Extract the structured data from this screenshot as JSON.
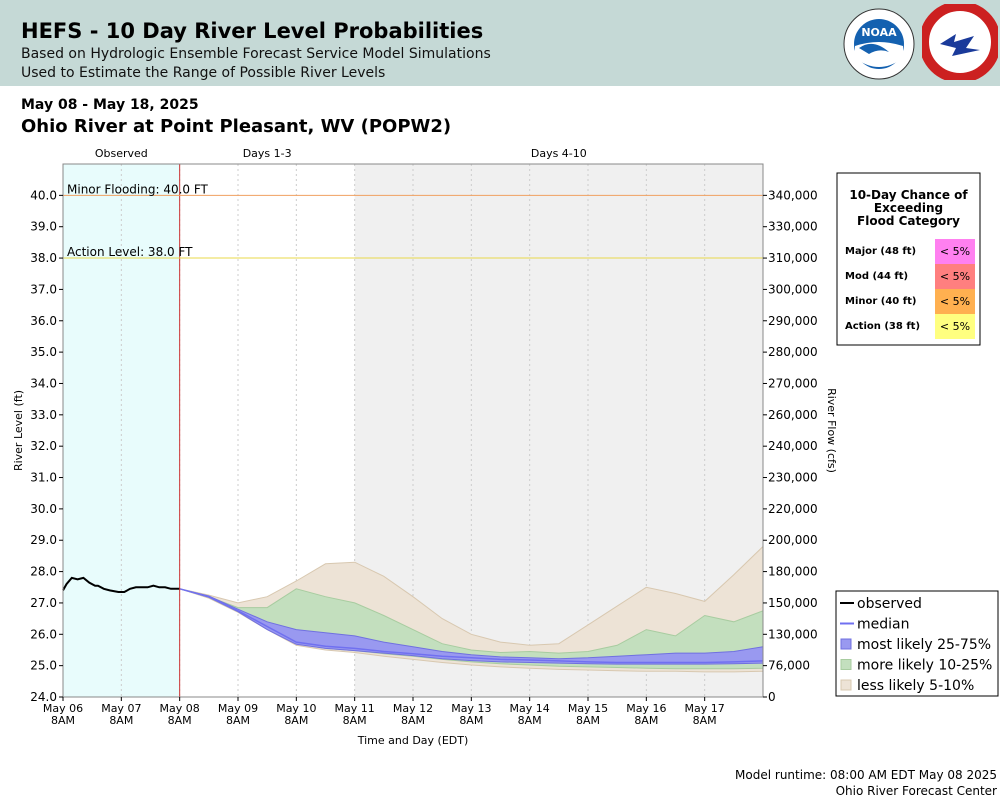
{
  "header": {
    "title": "HEFS - 10 Day River Level Probabilities",
    "subtitle1": "Based on Hydrologic Ensemble Forecast Service Model Simulations",
    "subtitle2": "Used to Estimate the Range of Possible River Levels",
    "bg_color": "#c5d9d6",
    "logos": [
      "noaa-logo",
      "national-weather-service-logo"
    ]
  },
  "date_range": "May 08 - May 18, 2025",
  "station": "Ohio River at Point Pleasant, WV (POPW2)",
  "footer": {
    "runtime": "Model runtime: 08:00 AM EDT May 08 2025",
    "center": "Ohio River Forecast Center"
  },
  "chart_data": {
    "type": "area",
    "ylabel": "River Level (ft)",
    "y2label": "River Flow (cfs)",
    "xlabel": "Time and Day (EDT)",
    "ylim": [
      24.0,
      41.0
    ],
    "y_ticks": [
      "24.0",
      "25.0",
      "26.0",
      "27.0",
      "28.0",
      "29.0",
      "30.0",
      "31.0",
      "32.0",
      "33.0",
      "34.0",
      "35.0",
      "36.0",
      "37.0",
      "38.0",
      "39.0",
      "40.0"
    ],
    "y2_ticks": [
      {
        "stage": 24.0,
        "label": "0"
      },
      {
        "stage": 25.0,
        "label": "76,000"
      },
      {
        "stage": 26.0,
        "label": "130,000"
      },
      {
        "stage": 27.0,
        "label": "150,000"
      },
      {
        "stage": 28.0,
        "label": "180,000"
      },
      {
        "stage": 29.0,
        "label": "200,000"
      },
      {
        "stage": 30.0,
        "label": "220,000"
      },
      {
        "stage": 31.0,
        "label": "230,000"
      },
      {
        "stage": 32.0,
        "label": "240,000"
      },
      {
        "stage": 33.0,
        "label": "260,000"
      },
      {
        "stage": 34.0,
        "label": "270,000"
      },
      {
        "stage": 35.0,
        "label": "280,000"
      },
      {
        "stage": 36.0,
        "label": "290,000"
      },
      {
        "stage": 37.0,
        "label": "300,000"
      },
      {
        "stage": 38.0,
        "label": "310,000"
      },
      {
        "stage": 39.0,
        "label": "330,000"
      },
      {
        "stage": 40.0,
        "label": "340,000"
      }
    ],
    "x_ticks": [
      {
        "day": 0,
        "label1": "May 06",
        "label2": "8AM"
      },
      {
        "day": 1,
        "label1": "May 07",
        "label2": "8AM"
      },
      {
        "day": 2,
        "label1": "May 08",
        "label2": "8AM"
      },
      {
        "day": 3,
        "label1": "May 09",
        "label2": "8AM"
      },
      {
        "day": 4,
        "label1": "May 10",
        "label2": "8AM"
      },
      {
        "day": 5,
        "label1": "May 11",
        "label2": "8AM"
      },
      {
        "day": 6,
        "label1": "May 12",
        "label2": "8AM"
      },
      {
        "day": 7,
        "label1": "May 13",
        "label2": "8AM"
      },
      {
        "day": 8,
        "label1": "May 14",
        "label2": "8AM"
      },
      {
        "day": 9,
        "label1": "May 15",
        "label2": "8AM"
      },
      {
        "day": 10,
        "label1": "May 16",
        "label2": "8AM"
      },
      {
        "day": 11,
        "label1": "May 17",
        "label2": "8AM"
      }
    ],
    "xlim": [
      0,
      12
    ],
    "regions": [
      {
        "label": "Observed",
        "start": 0,
        "end": 2,
        "color": "#e8fcfc"
      },
      {
        "label": "Days 1-3",
        "start": 2,
        "end": 5,
        "color": "#ffffff"
      },
      {
        "label": "Days 4-10",
        "start": 5,
        "end": 12,
        "color": "#f0f0f0"
      }
    ],
    "forecast_start": 2,
    "thresholds": [
      {
        "label": "Minor Flooding: 40.0 FT",
        "value": 40.0,
        "color": "#f0a060"
      },
      {
        "label": "Action Level: 38.0 FT",
        "value": 38.0,
        "color": "#e8d84a"
      }
    ],
    "observed": {
      "name": "observed",
      "color": "#000000",
      "x": [
        0,
        0.06,
        0.15,
        0.25,
        0.35,
        0.45,
        0.55,
        0.6,
        0.7,
        0.8,
        0.95,
        1.05,
        1.15,
        1.25,
        1.35,
        1.45,
        1.55,
        1.65,
        1.75,
        1.85,
        1.95,
        2.0
      ],
      "y": [
        27.4,
        27.6,
        27.8,
        27.75,
        27.8,
        27.65,
        27.55,
        27.55,
        27.45,
        27.4,
        27.35,
        27.35,
        27.45,
        27.5,
        27.5,
        27.5,
        27.55,
        27.5,
        27.5,
        27.45,
        27.45,
        27.45
      ]
    },
    "forecast_x": [
      2,
      2.5,
      3,
      3.5,
      4,
      4.5,
      5,
      5.5,
      6,
      6.5,
      7,
      7.5,
      8,
      8.5,
      9,
      9.5,
      10,
      10.5,
      11,
      11.5,
      12
    ],
    "median": {
      "name": "median",
      "color": "#7070f0",
      "y": [
        27.45,
        27.2,
        26.75,
        26.25,
        25.75,
        25.62,
        25.55,
        25.45,
        25.38,
        25.3,
        25.25,
        25.2,
        25.18,
        25.15,
        25.12,
        25.1,
        25.1,
        25.1,
        25.1,
        25.12,
        25.15
      ]
    },
    "bands": [
      {
        "name": "less likely 5-10%",
        "color": "#ede3d6",
        "border": "#d8c8b0",
        "upper": [
          27.45,
          27.25,
          27.0,
          27.2,
          27.7,
          28.25,
          28.3,
          27.85,
          27.2,
          26.5,
          26.0,
          25.75,
          25.65,
          25.7,
          26.3,
          26.9,
          27.5,
          27.3,
          27.05,
          27.9,
          28.8
        ],
        "lower": [
          27.45,
          27.15,
          26.7,
          26.15,
          25.65,
          25.5,
          25.42,
          25.3,
          25.2,
          25.1,
          25.02,
          24.96,
          24.92,
          24.88,
          24.86,
          24.84,
          24.82,
          24.82,
          24.8,
          24.8,
          24.82
        ]
      },
      {
        "name": "more likely 10-25%",
        "color": "#c3dfbe",
        "border": "#a8cca0",
        "upper": [
          27.45,
          27.2,
          26.85,
          26.85,
          27.45,
          27.2,
          27.0,
          26.6,
          26.15,
          25.7,
          25.5,
          25.42,
          25.45,
          25.4,
          25.45,
          25.65,
          26.15,
          25.95,
          26.6,
          26.4,
          26.75
        ],
        "lower": [
          27.45,
          27.18,
          26.72,
          26.2,
          25.7,
          25.55,
          25.48,
          25.38,
          25.3,
          25.2,
          25.12,
          25.06,
          25.02,
          24.98,
          24.96,
          24.94,
          24.92,
          24.9,
          24.9,
          24.9,
          24.92
        ]
      },
      {
        "name": "most likely 25-75%",
        "color": "#9999f0",
        "border": "#7070e0",
        "upper": [
          27.45,
          27.22,
          26.8,
          26.4,
          26.15,
          26.05,
          25.95,
          25.75,
          25.6,
          25.45,
          25.35,
          25.28,
          25.25,
          25.22,
          25.25,
          25.3,
          25.35,
          25.4,
          25.4,
          25.45,
          25.6
        ],
        "lower": [
          27.45,
          27.18,
          26.72,
          26.15,
          25.68,
          25.55,
          25.48,
          25.4,
          25.32,
          25.22,
          25.16,
          25.12,
          25.1,
          25.08,
          25.06,
          25.05,
          25.05,
          25.05,
          25.05,
          25.06,
          25.08
        ]
      }
    ],
    "legend": {
      "position": "bottom-right",
      "entries": [
        "observed",
        "median",
        "most likely 25-75%",
        "more likely 10-25%",
        "less likely 5-10%"
      ]
    },
    "chance_table": {
      "title_lines": [
        "10-Day Chance of",
        "Exceeding",
        "Flood Category"
      ],
      "rows": [
        {
          "category": "Major (48 ft)",
          "value": "< 5%",
          "color": "#ff80f0"
        },
        {
          "category": "Mod (44 ft)",
          "value": "< 5%",
          "color": "#ff7f7f"
        },
        {
          "category": "Minor (40 ft)",
          "value": "< 5%",
          "color": "#ffb050"
        },
        {
          "category": "Action (38 ft)",
          "value": "< 5%",
          "color": "#ffff80"
        }
      ]
    }
  }
}
